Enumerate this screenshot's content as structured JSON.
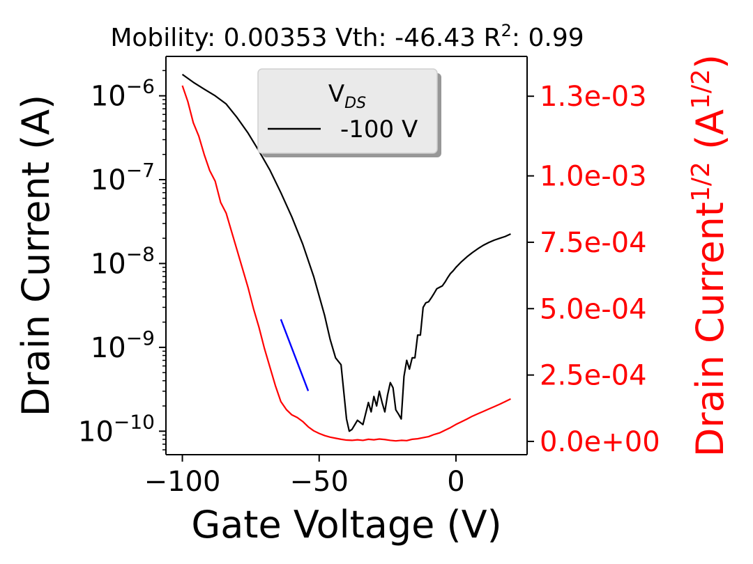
{
  "chart_data": {
    "type": "line",
    "title": "Mobility: 0.00353 Vth: -46.43 R",
    "title_sup": "2",
    "title_tail": ": 0.99",
    "xlabel": "Gate Voltage (V)",
    "ylabel": "Drain Current (A)",
    "y2label_base": "Drain Current",
    "y2label_sup": "1/2",
    "y2label_unit_open": " (A",
    "y2label_unit_sup": "1/2",
    "y2label_unit_close": ")",
    "xlim": [
      -106,
      26
    ],
    "ylim_log10": [
      -10.28,
      -5.53
    ],
    "y2lim": [
      -5e-05,
      0.00145
    ],
    "x_ticks": [
      -100,
      -50,
      0
    ],
    "x_tick_labels": [
      "−100",
      "−50",
      "0"
    ],
    "y_tick_exponents": [
      -6,
      -7,
      -8,
      -9,
      -10
    ],
    "y_tick_base": "10",
    "y_tick_exponent_labels": [
      "−6",
      "−7",
      "−8",
      "−9",
      "−10"
    ],
    "y2_ticks": [
      0.0013,
      0.001,
      0.00075,
      0.0005,
      0.00025,
      0
    ],
    "y2_tick_labels": [
      "1.3e-03",
      "1.0e-03",
      "7.5e-04",
      "5.0e-04",
      "2.5e-04",
      "0.0e+00"
    ],
    "legend": {
      "title_base": "V",
      "title_sub": "DS",
      "entries": [
        "-100 V"
      ],
      "location": "upper-center"
    },
    "colors": {
      "drain_current": "#000000",
      "sqrt_current": "#ff0000",
      "fit": "#0000ff",
      "axis": "#000000",
      "right_axis": "#ff0000"
    },
    "series": [
      {
        "name": "-100 V",
        "axis": "left-log",
        "x": [
          -100,
          -96,
          -92,
          -88,
          -84,
          -80,
          -76,
          -72,
          -68,
          -64,
          -60,
          -56,
          -52,
          -48,
          -46,
          -44,
          -42,
          -40,
          -39,
          -38,
          -36,
          -34,
          -32,
          -31,
          -30,
          -29,
          -28,
          -27,
          -26,
          -25,
          -24,
          -23,
          -22,
          -21,
          -20,
          -19,
          -18,
          -17,
          -16,
          -15,
          -14,
          -13,
          -12,
          -11,
          -10,
          -9,
          -8,
          -7,
          -6,
          -5,
          -4,
          -3,
          -2,
          -1,
          0,
          2,
          4,
          6,
          8,
          10,
          12,
          14,
          16,
          18,
          20
        ],
        "y": [
          1.8e-06,
          1.45e-06,
          1.2e-06,
          1e-06,
          8e-07,
          5.5e-07,
          3.6e-07,
          2.2e-07,
          1.3e-07,
          7e-08,
          3.6e-08,
          1.7e-08,
          7e-09,
          2.4e-09,
          1.25e-09,
          7.5e-10,
          6.2e-10,
          1.4e-10,
          1e-10,
          1.05e-10,
          1.35e-10,
          1.2e-10,
          2.2e-10,
          1.7e-10,
          2.6e-10,
          2e-10,
          3e-10,
          2.2e-10,
          1.7e-10,
          2.7e-10,
          3.8e-10,
          3.3e-10,
          1.8e-10,
          1.6e-10,
          1.4e-10,
          4.5e-10,
          7e-10,
          5.5e-10,
          7.5e-10,
          7.5e-10,
          1.4e-09,
          1.4e-09,
          3e-09,
          3.4e-09,
          3.5e-09,
          3.9e-09,
          4.4e-09,
          5e-09,
          5.2e-09,
          5.4e-09,
          6e-09,
          6.8e-09,
          7.6e-09,
          8.2e-09,
          9e-09,
          1.05e-08,
          1.2e-08,
          1.35e-08,
          1.5e-08,
          1.65e-08,
          1.78e-08,
          1.9e-08,
          2e-08,
          2.1e-08,
          2.25e-08
        ]
      },
      {
        "name": "",
        "axis": "right",
        "x": [
          -100,
          -98,
          -96,
          -94,
          -92,
          -90,
          -88,
          -86,
          -84,
          -82,
          -80,
          -78,
          -76,
          -74,
          -72,
          -70,
          -68,
          -66,
          -64,
          -62,
          -60,
          -58,
          -56,
          -54,
          -52,
          -50,
          -48,
          -46,
          -44,
          -42,
          -40,
          -38,
          -36,
          -34,
          -32,
          -30,
          -28,
          -26,
          -24,
          -22,
          -20,
          -18,
          -16,
          -14,
          -12,
          -10,
          -8,
          -6,
          -4,
          -2,
          0,
          2,
          4,
          6,
          8,
          10,
          12,
          14,
          16,
          18,
          20
        ],
        "y": [
          0.00134,
          0.00128,
          0.0012,
          0.00115,
          0.00108,
          0.00102,
          0.00098,
          0.0009,
          0.00086,
          0.00079,
          0.00072,
          0.00065,
          0.00058,
          0.0005,
          0.00043,
          0.00035,
          0.00028,
          0.00021,
          0.00015,
          0.00012,
          0.0001,
          9e-05,
          7.5e-05,
          5.5e-05,
          4e-05,
          3e-05,
          2.2e-05,
          1.6e-05,
          1.2e-05,
          8e-06,
          5e-06,
          4e-06,
          6e-06,
          4e-06,
          8e-06,
          6e-06,
          9e-06,
          7e-06,
          4e-06,
          2e-06,
          4e-06,
          3e-06,
          8e-06,
          1e-05,
          1.4e-05,
          1.8e-05,
          2.6e-05,
          3.2e-05,
          4.2e-05,
          5.2e-05,
          6.4e-05,
          7.4e-05,
          8.4e-05,
          9.5e-05,
          0.000104,
          0.000113,
          0.000122,
          0.000131,
          0.00014,
          0.00015,
          0.00016
        ]
      },
      {
        "name": "",
        "axis": "right",
        "x": [
          -64,
          -54
        ],
        "y": [
          0.00046,
          0.00019
        ]
      }
    ]
  }
}
